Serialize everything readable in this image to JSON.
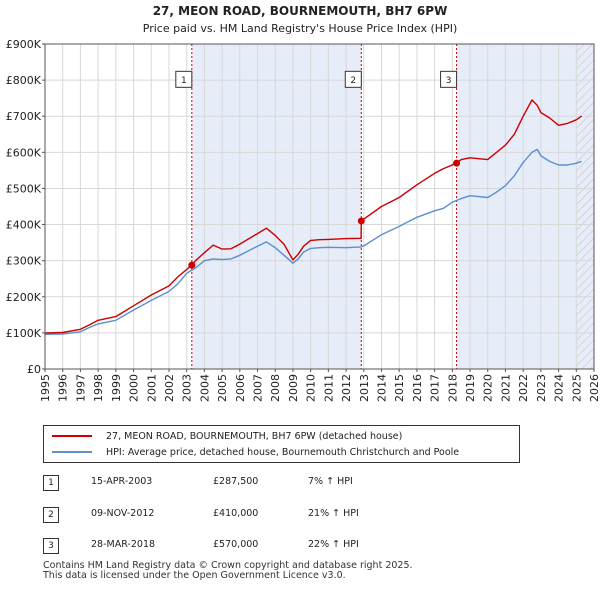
{
  "chart_data": {
    "type": "line",
    "title": "27, MEON ROAD, BOURNEMOUTH, BH7 6PW",
    "subtitle": "Price paid vs. HM Land Registry's House Price Index (HPI)",
    "xlabel": "",
    "ylabel": "",
    "xlim": [
      1995,
      2026
    ],
    "ylim": [
      0,
      900000
    ],
    "y_ticks": [
      0,
      100000,
      200000,
      300000,
      400000,
      500000,
      600000,
      700000,
      800000,
      900000
    ],
    "y_tick_labels": [
      "£0",
      "£100K",
      "£200K",
      "£300K",
      "£400K",
      "£500K",
      "£600K",
      "£700K",
      "£800K",
      "£900K"
    ],
    "x_ticks": [
      1995,
      1996,
      1997,
      1998,
      1999,
      2000,
      2001,
      2002,
      2003,
      2004,
      2005,
      2006,
      2007,
      2008,
      2009,
      2010,
      2011,
      2012,
      2013,
      2014,
      2015,
      2016,
      2017,
      2018,
      2019,
      2020,
      2021,
      2022,
      2023,
      2024,
      2025,
      2026
    ],
    "x_tick_labels": [
      "1995",
      "1996",
      "1997",
      "1998",
      "1999",
      "2000",
      "2001",
      "2002",
      "2003",
      "2004",
      "2005",
      "2006",
      "2007",
      "2008",
      "2009",
      "2010",
      "2011",
      "2012",
      "2013",
      "2014",
      "2015",
      "2016",
      "2017",
      "2018",
      "2019",
      "2020",
      "2021",
      "2022",
      "2023",
      "2024",
      "2025",
      "2026"
    ],
    "grid": true,
    "shaded_regions": [
      [
        2003.29,
        2012.86
      ],
      [
        2018.24,
        2026
      ]
    ],
    "hatched_region_start": 2025.0,
    "series": [
      {
        "name": "27, MEON ROAD, BOURNEMOUTH, BH7 6PW (detached house)",
        "color": "#cc0000",
        "x": [
          1995,
          1996,
          1997,
          1997.5,
          1998,
          1999,
          2000,
          2001,
          2002,
          2002.5,
          2003.29,
          2003.5,
          2004,
          2004.5,
          2005,
          2005.5,
          2006,
          2007,
          2007.5,
          2008,
          2008.5,
          2009,
          2009.3,
          2009.6,
          2010,
          2010.5,
          2011,
          2012,
          2012.85,
          2012.86,
          2013,
          2014,
          2015,
          2016,
          2017,
          2017.5,
          2018.24,
          2018.5,
          2019,
          2020,
          2020.5,
          2021,
          2021.5,
          2022,
          2022.5,
          2022.8,
          2023,
          2023.5,
          2024,
          2024.5,
          2025,
          2025.3
        ],
        "values": [
          100000,
          101000,
          110000,
          122000,
          135000,
          145000,
          175000,
          205000,
          230000,
          255000,
          287500,
          300000,
          322000,
          343000,
          332000,
          333000,
          346000,
          375000,
          390000,
          370000,
          345000,
          302000,
          318000,
          340000,
          356000,
          358000,
          359000,
          361000,
          362000,
          410000,
          415000,
          450000,
          475000,
          510000,
          542000,
          555000,
          570000,
          580000,
          585000,
          580000,
          600000,
          620000,
          650000,
          700000,
          745000,
          730000,
          710000,
          695000,
          675000,
          680000,
          690000,
          700000
        ]
      },
      {
        "name": "HPI: Average price, detached house, Bournemouth Christchurch and Poole",
        "color": "#5a8fd0",
        "x": [
          1995,
          1996,
          1997,
          1997.5,
          1998,
          1999,
          2000,
          2001,
          2002,
          2002.5,
          2003,
          2003.5,
          2004,
          2004.5,
          2005,
          2005.5,
          2006,
          2007,
          2007.5,
          2008,
          2008.5,
          2009,
          2009.3,
          2009.6,
          2010,
          2010.5,
          2011,
          2012,
          2012.86,
          2013,
          2014,
          2015,
          2016,
          2017,
          2017.5,
          2018,
          2018.5,
          2019,
          2020,
          2020.5,
          2021,
          2021.5,
          2022,
          2022.5,
          2022.8,
          2023,
          2023.5,
          2024,
          2024.5,
          2025,
          2025.3
        ],
        "values": [
          96000,
          97000,
          103000,
          115000,
          125000,
          135000,
          163000,
          190000,
          215000,
          236000,
          265000,
          280000,
          300000,
          305000,
          303000,
          305000,
          315000,
          340000,
          352000,
          336000,
          315000,
          293000,
          305000,
          324000,
          334000,
          336000,
          337000,
          336000,
          338000,
          341000,
          372000,
          395000,
          420000,
          438000,
          445000,
          462000,
          472000,
          480000,
          475000,
          490000,
          508000,
          535000,
          572000,
          600000,
          608000,
          590000,
          575000,
          565000,
          565000,
          570000,
          575000
        ]
      }
    ],
    "markers": [
      {
        "label": "1",
        "x": 2003.29,
        "value": 287500
      },
      {
        "label": "2",
        "x": 2012.86,
        "value": 410000
      },
      {
        "label": "3",
        "x": 2018.24,
        "value": 570000
      }
    ],
    "marker_label_value": 780000,
    "legend_position": "below"
  },
  "legend": [
    {
      "label": "27, MEON ROAD, BOURNEMOUTH, BH7 6PW (detached house)",
      "color": "#cc0000"
    },
    {
      "label": "HPI: Average price, detached house, Bournemouth Christchurch and Poole",
      "color": "#5a8fd0"
    }
  ],
  "transactions": [
    {
      "num": "1",
      "date": "15-APR-2003",
      "price": "£287,500",
      "hpi": "7% ↑ HPI"
    },
    {
      "num": "2",
      "date": "09-NOV-2012",
      "price": "£410,000",
      "hpi": "21% ↑ HPI"
    },
    {
      "num": "3",
      "date": "28-MAR-2018",
      "price": "£570,000",
      "hpi": "22% ↑ HPI"
    }
  ],
  "footer": {
    "line1": "Contains HM Land Registry data © Crown copyright and database right 2025.",
    "line2": "This data is licensed under the Open Government Licence v3.0."
  }
}
